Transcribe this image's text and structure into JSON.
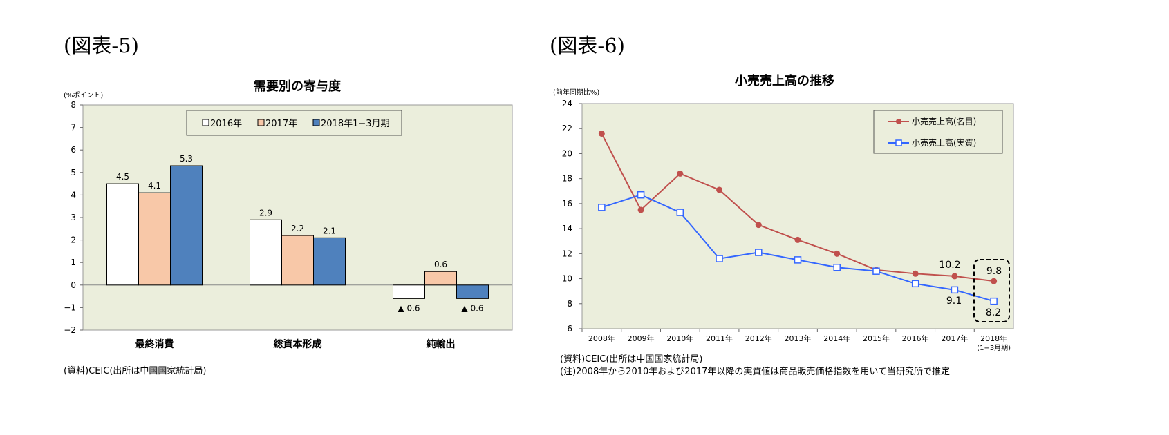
{
  "charts": {
    "left": {
      "figure_label": "(図表-5)",
      "source_note": "(資料)CEIC(出所は中国国家統計局)"
    },
    "right": {
      "figure_label": "(図表-6)",
      "source_note": "(資料)CEIC(出所は中国国家統計局)",
      "footnote": "(注)2008年から2010年および2017年以降の実質値は商品販売価格指数を用いて当研究所で推定"
    }
  },
  "colors": {
    "plot_bg": "#EBEEDC",
    "bar_2016": "#FFFFFF",
    "bar_2017": "#F8C8A8",
    "bar_2018": "#4F81BD",
    "line_nominal": "#C0504D",
    "line_real": "#3366FF"
  },
  "chart_data": [
    {
      "type": "bar",
      "title": "需要別の寄与度",
      "ylabel": "(%ポイント)",
      "ylim": [
        -2,
        8
      ],
      "yticks": [
        "−2",
        "−1",
        "0",
        "1",
        "2",
        "3",
        "4",
        "5",
        "6",
        "7",
        "8"
      ],
      "categories": [
        "最終消費",
        "総資本形成",
        "純輸出"
      ],
      "legend_position": "top-center",
      "grid": false,
      "series": [
        {
          "name": "2016年",
          "values": [
            4.5,
            2.9,
            -0.6
          ],
          "labels": [
            "4.5",
            "2.9",
            "▲ 0.6"
          ]
        },
        {
          "name": "2017年",
          "values": [
            4.1,
            2.2,
            0.6
          ],
          "labels": [
            "4.1",
            "2.2",
            "0.6"
          ]
        },
        {
          "name": "2018年1−3月期",
          "values": [
            5.3,
            2.1,
            -0.6
          ],
          "labels": [
            "5.3",
            "2.1",
            "▲ 0.6"
          ]
        }
      ]
    },
    {
      "type": "line",
      "title": "小売売上高の推移",
      "ylabel": "(前年同期比%)",
      "ylim": [
        6,
        24
      ],
      "yticks": [
        "6",
        "8",
        "10",
        "12",
        "14",
        "16",
        "18",
        "20",
        "22",
        "24"
      ],
      "x": [
        "2008年",
        "2009年",
        "2010年",
        "2011年",
        "2012年",
        "2013年",
        "2014年",
        "2015年",
        "2016年",
        "2017年",
        "2018年"
      ],
      "x_sublabel_last": "(1−3月期)",
      "legend_position": "top-right",
      "grid": false,
      "series": [
        {
          "name": "小売売上高(名目)",
          "values": [
            21.6,
            15.5,
            18.4,
            17.1,
            14.3,
            13.1,
            12.0,
            10.7,
            10.4,
            10.2,
            9.8
          ]
        },
        {
          "name": "小売売上高(実質)",
          "values": [
            15.7,
            16.7,
            15.3,
            11.6,
            12.1,
            11.5,
            10.9,
            10.6,
            9.6,
            9.1,
            8.2
          ]
        }
      ],
      "annotations": [
        "10.2",
        "9.8",
        "9.1",
        "8.2"
      ]
    }
  ]
}
